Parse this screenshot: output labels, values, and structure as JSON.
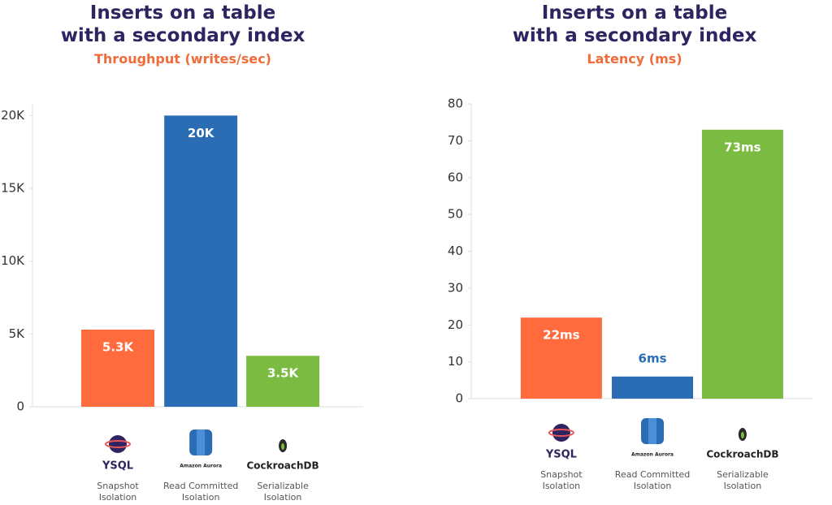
{
  "chart_data": [
    {
      "type": "bar",
      "title": "Inserts on a table\nwith a secondary index",
      "subtitle": "Throughput (writes/sec)",
      "categories": [
        "Snapshot Isolation",
        "Read Committed Isolation",
        "Serializable Isolation"
      ],
      "logos": [
        "YSQL",
        "Amazon Aurora",
        "CockroachDB"
      ],
      "values": [
        5300,
        20000,
        3500
      ],
      "value_labels": [
        "5.3K",
        "20K",
        "3.5K"
      ],
      "colors": [
        "#ff6b3d",
        "#2a6db5",
        "#7cbb42"
      ],
      "ylim": [
        0,
        20800
      ],
      "yticks": [
        0,
        {
          "value": 5000,
          "label": "5K"
        },
        {
          "value": 10000,
          "label": "10K"
        },
        {
          "value": 15000,
          "label": "15K"
        },
        {
          "value": 20000,
          "label": "20K"
        }
      ]
    },
    {
      "type": "bar",
      "title": "Inserts on a table\nwith a secondary index",
      "subtitle": "Latency (ms)",
      "categories": [
        "Snapshot Isolation",
        "Read Committed Isolation",
        "Serializable Isolation"
      ],
      "logos": [
        "YSQL",
        "Amazon Aurora",
        "CockroachDB"
      ],
      "values": [
        22,
        6,
        73
      ],
      "value_labels": [
        "22ms",
        "6ms",
        "73ms"
      ],
      "colors": [
        "#ff6b3d",
        "#2a6db5",
        "#7cbb42"
      ],
      "ylim": [
        0,
        80
      ],
      "yticks": [
        0,
        10,
        20,
        30,
        40,
        50,
        60,
        70,
        80
      ]
    }
  ]
}
